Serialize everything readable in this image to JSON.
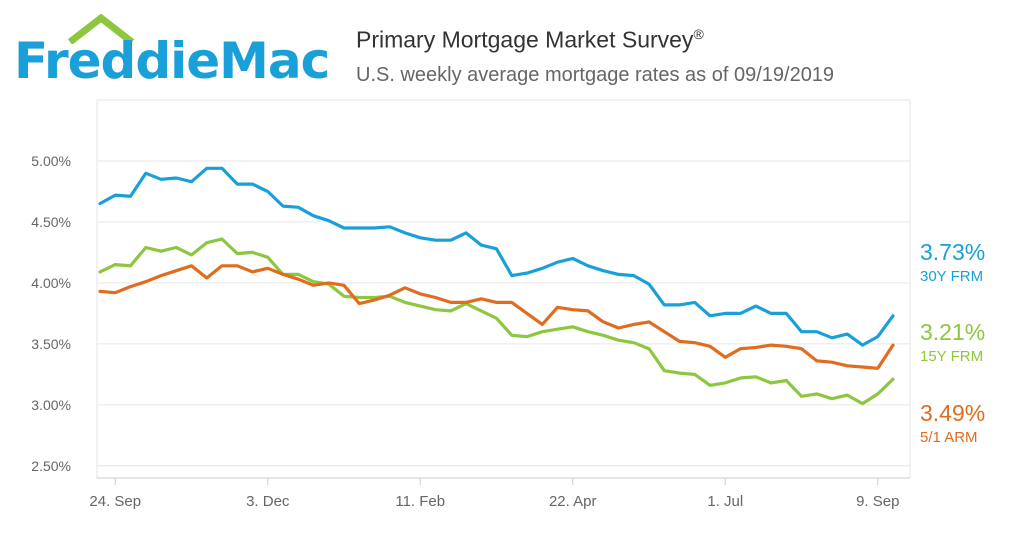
{
  "logo": {
    "text": "FreddieMac",
    "color": "#1aa0d8",
    "roof_color": "#8dc63f"
  },
  "header": {
    "title": "Primary Mortgage Market Survey",
    "title_mark": "®",
    "subtitle": "U.S. weekly average mortgage rates as of 09/19/2019"
  },
  "chart_data": {
    "type": "line",
    "title": "Primary Mortgage Market Survey",
    "subtitle": "U.S. weekly average mortgage rates as of 09/19/2019",
    "xlabel": "",
    "ylabel": "",
    "ylim": [
      2.4,
      5.5
    ],
    "yticks": [
      2.5,
      3.0,
      3.5,
      4.0,
      4.5,
      5.0
    ],
    "ytick_labels": [
      "2.50%",
      "3.00%",
      "3.50%",
      "4.00%",
      "4.50%",
      "5.00%"
    ],
    "xtick_labels": [
      "24. Sep",
      "3. Dec",
      "11. Feb",
      "22. Apr",
      "1. Jul",
      "9. Sep"
    ],
    "xtick_week_index": [
      1,
      11,
      21,
      31,
      41,
      51
    ],
    "grid": "horizontal",
    "x": [
      "2018-09-20",
      "2018-09-27",
      "2018-10-04",
      "2018-10-11",
      "2018-10-18",
      "2018-10-25",
      "2018-11-01",
      "2018-11-08",
      "2018-11-15",
      "2018-11-21",
      "2018-11-29",
      "2018-12-06",
      "2018-12-13",
      "2018-12-20",
      "2018-12-27",
      "2019-01-03",
      "2019-01-10",
      "2019-01-17",
      "2019-01-24",
      "2019-01-31",
      "2019-02-07",
      "2019-02-14",
      "2019-02-21",
      "2019-02-28",
      "2019-03-07",
      "2019-03-14",
      "2019-03-21",
      "2019-03-28",
      "2019-04-04",
      "2019-04-11",
      "2019-04-18",
      "2019-04-25",
      "2019-05-02",
      "2019-05-09",
      "2019-05-16",
      "2019-05-23",
      "2019-05-30",
      "2019-06-06",
      "2019-06-13",
      "2019-06-20",
      "2019-06-27",
      "2019-07-03",
      "2019-07-11",
      "2019-07-18",
      "2019-07-25",
      "2019-08-01",
      "2019-08-08",
      "2019-08-15",
      "2019-08-22",
      "2019-08-29",
      "2019-09-05",
      "2019-09-12",
      "2019-09-19"
    ],
    "series": [
      {
        "name": "30Y FRM",
        "color": "#1aa0d8",
        "last_label": "3.73%",
        "values": [
          4.65,
          4.72,
          4.71,
          4.9,
          4.85,
          4.86,
          4.83,
          4.94,
          4.94,
          4.81,
          4.81,
          4.75,
          4.63,
          4.62,
          4.55,
          4.51,
          4.45,
          4.45,
          4.45,
          4.46,
          4.41,
          4.37,
          4.35,
          4.35,
          4.41,
          4.31,
          4.28,
          4.06,
          4.08,
          4.12,
          4.17,
          4.2,
          4.14,
          4.1,
          4.07,
          4.06,
          3.99,
          3.82,
          3.82,
          3.84,
          3.73,
          3.75,
          3.75,
          3.81,
          3.75,
          3.75,
          3.6,
          3.6,
          3.55,
          3.58,
          3.49,
          3.56,
          3.73
        ]
      },
      {
        "name": "15Y FRM",
        "color": "#8dc63f",
        "last_label": "3.21%",
        "values": [
          4.09,
          4.15,
          4.14,
          4.29,
          4.26,
          4.29,
          4.23,
          4.33,
          4.36,
          4.24,
          4.25,
          4.21,
          4.07,
          4.07,
          4.01,
          3.99,
          3.89,
          3.88,
          3.88,
          3.89,
          3.84,
          3.81,
          3.78,
          3.77,
          3.83,
          3.77,
          3.71,
          3.57,
          3.56,
          3.6,
          3.62,
          3.64,
          3.6,
          3.57,
          3.53,
          3.51,
          3.46,
          3.28,
          3.26,
          3.25,
          3.16,
          3.18,
          3.22,
          3.23,
          3.18,
          3.2,
          3.07,
          3.09,
          3.05,
          3.08,
          3.01,
          3.09,
          3.21
        ]
      },
      {
        "name": "5/1 ARM",
        "color": "#e06c1f",
        "last_label": "3.49%",
        "values": [
          3.93,
          3.92,
          3.97,
          4.01,
          4.06,
          4.1,
          4.14,
          4.04,
          4.14,
          4.14,
          4.09,
          4.12,
          4.07,
          4.03,
          3.98,
          4.0,
          3.98,
          3.83,
          3.86,
          3.9,
          3.96,
          3.91,
          3.88,
          3.84,
          3.84,
          3.87,
          3.84,
          3.84,
          3.75,
          3.66,
          3.8,
          3.78,
          3.77,
          3.68,
          3.63,
          3.66,
          3.68,
          3.6,
          3.52,
          3.51,
          3.48,
          3.39,
          3.46,
          3.47,
          3.49,
          3.48,
          3.46,
          3.36,
          3.35,
          3.32,
          3.31,
          3.3,
          3.49
        ]
      }
    ],
    "legend": "right-end-labels"
  }
}
